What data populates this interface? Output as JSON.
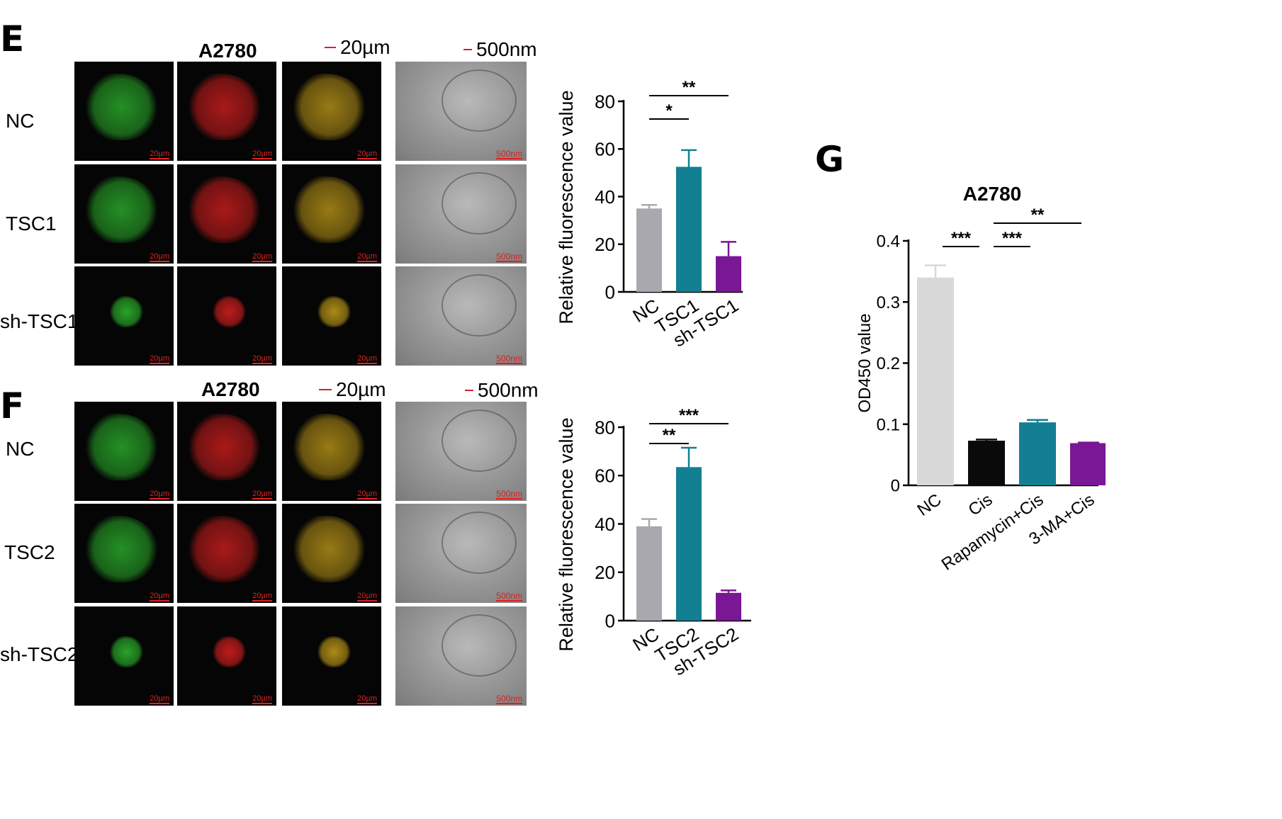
{
  "panels": {
    "E": {
      "letter": "E",
      "cell_line": "A2780",
      "scale_fluor": "20µm",
      "scale_em": "500nm",
      "rows": [
        "NC",
        "TSC1",
        "sh-TSC1"
      ],
      "tile_fluor_tag": "20µm",
      "tile_em_tag": "500nm"
    },
    "F": {
      "letter": "F",
      "cell_line": "A2780",
      "scale_fluor": "20µm",
      "scale_em": "500nm",
      "rows": [
        "NC",
        "TSC2",
        "sh-TSC2"
      ],
      "tile_fluor_tag": "20µm",
      "tile_em_tag": "500nm"
    },
    "G": {
      "letter": "G"
    }
  },
  "colors": {
    "gray": "#a8a8ae",
    "teal": "#127f93",
    "purple": "#7a1795",
    "light_gray": "#d8d8d8",
    "black": "#0a0a0a",
    "green_channel": "#2fbf2f",
    "red_channel": "#e02020",
    "merge_channel": "#c9a21a"
  },
  "chart_data": [
    {
      "id": "E-bar",
      "type": "bar",
      "title": "",
      "ylabel": "Relative fluorescence value",
      "xlabel": "",
      "categories": [
        "NC",
        "TSC1",
        "sh-TSC1"
      ],
      "values": [
        35,
        52.5,
        15
      ],
      "errors": [
        1.5,
        7,
        6
      ],
      "colors": [
        "#a8a8ae",
        "#127f93",
        "#7a1795"
      ],
      "ylim": [
        0,
        80
      ],
      "yticks": [
        0,
        20,
        40,
        60,
        80
      ],
      "significance": [
        {
          "from": 0,
          "to": 1,
          "label": "*"
        },
        {
          "from": 0,
          "to": 2,
          "label": "**"
        }
      ]
    },
    {
      "id": "F-bar",
      "type": "bar",
      "title": "",
      "ylabel": "Relative fluorescence value",
      "xlabel": "",
      "categories": [
        "NC",
        "TSC2",
        "sh-TSC2"
      ],
      "values": [
        39,
        63.5,
        11.5
      ],
      "errors": [
        3,
        8,
        1
      ],
      "colors": [
        "#a8a8ae",
        "#127f93",
        "#7a1795"
      ],
      "ylim": [
        0,
        80
      ],
      "yticks": [
        0,
        20,
        40,
        60,
        80
      ],
      "significance": [
        {
          "from": 0,
          "to": 1,
          "label": "**"
        },
        {
          "from": 0,
          "to": 2,
          "label": "***"
        }
      ]
    },
    {
      "id": "G-bar",
      "type": "bar",
      "title": "A2780",
      "ylabel": "OD450 value",
      "xlabel": "",
      "categories": [
        "NC",
        "Cis",
        "Rapamycin+Cis",
        "3-MA+Cis"
      ],
      "values": [
        0.34,
        0.073,
        0.103,
        0.069
      ],
      "errors": [
        0.02,
        0.002,
        0.004,
        0.001
      ],
      "colors": [
        "#d8d8d8",
        "#0a0a0a",
        "#127f93",
        "#7a1795"
      ],
      "ylim": [
        0,
        0.4
      ],
      "yticks": [
        0,
        0.1,
        0.2,
        0.3,
        0.4
      ],
      "ytick_labels": [
        "0",
        "0.1",
        "0.2",
        "0.3",
        "0.4"
      ],
      "significance": [
        {
          "from": 0,
          "to": 1,
          "label": "***"
        },
        {
          "from": 1,
          "to": 2,
          "label": "***"
        },
        {
          "from": 1,
          "to": 3,
          "label": "**"
        }
      ]
    }
  ]
}
